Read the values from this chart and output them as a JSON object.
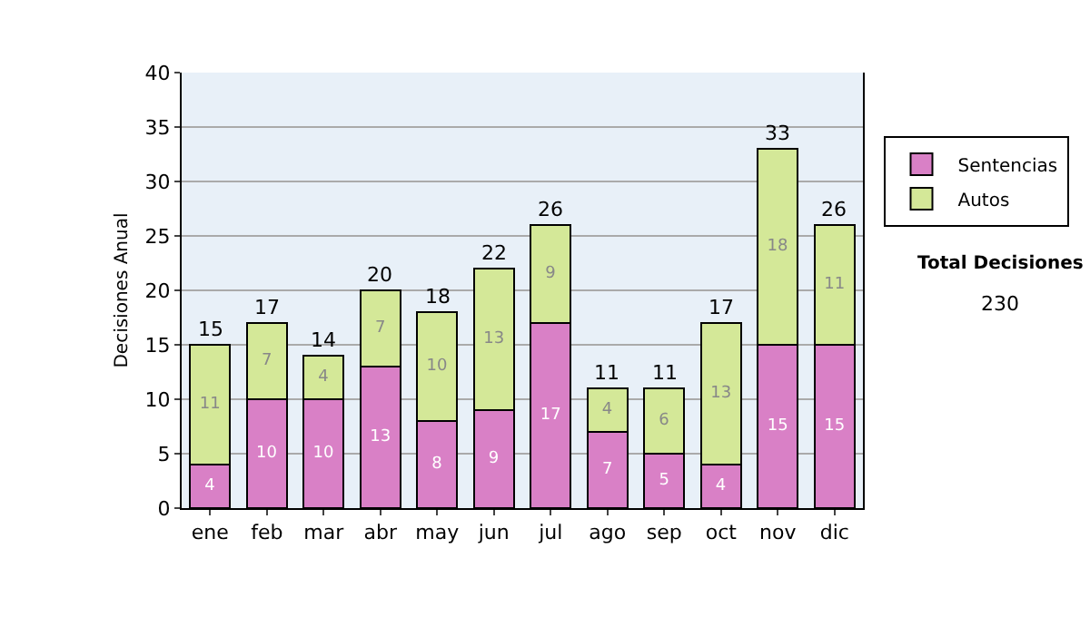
{
  "chart_data": {
    "type": "bar",
    "stacked": true,
    "ylabel": "Decisiones Anual",
    "categories": [
      "ene",
      "feb",
      "mar",
      "abr",
      "may",
      "jun",
      "jul",
      "ago",
      "sep",
      "oct",
      "nov",
      "dic"
    ],
    "series": [
      {
        "name": "Sentencias",
        "color": "#d980c6",
        "values": [
          4,
          10,
          10,
          13,
          8,
          9,
          17,
          7,
          5,
          4,
          15,
          15
        ]
      },
      {
        "name": "Autos",
        "color": "#d4e898",
        "values": [
          11,
          7,
          4,
          7,
          10,
          13,
          9,
          4,
          6,
          13,
          18,
          11
        ]
      }
    ],
    "totals": [
      "15",
      "17",
      "14",
      "20",
      "18",
      "22",
      "26",
      "11",
      "11",
      "17",
      "33",
      "26"
    ],
    "data_labels": true,
    "ylim": [
      0,
      40
    ],
    "yticks": [
      0,
      5,
      10,
      15,
      20,
      25,
      30,
      35,
      40
    ],
    "grid": "y",
    "legend": "right",
    "annotations": [
      "Total Decisiones",
      "230"
    ]
  }
}
